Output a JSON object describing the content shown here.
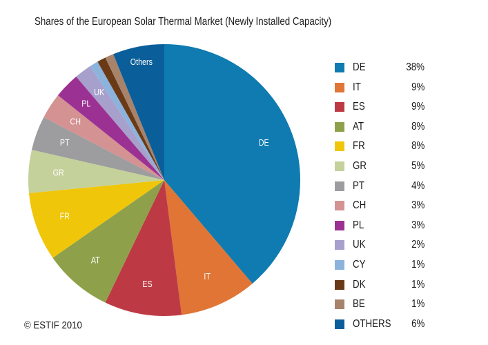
{
  "chart_data": {
    "type": "pie",
    "title": "Shares of the European Solar Thermal Market (Newly Installed Capacity)",
    "start": "12 o'clock, clockwise",
    "legend_position": "right",
    "slices": [
      {
        "key": "DE",
        "slice_label": "DE",
        "value": 38,
        "value_label": "38%",
        "color": "#0f7bb0"
      },
      {
        "key": "IT",
        "slice_label": "IT",
        "value": 9,
        "value_label": "9%",
        "color": "#e07535"
      },
      {
        "key": "ES",
        "slice_label": "ES",
        "value": 9,
        "value_label": "9%",
        "color": "#bd3a45"
      },
      {
        "key": "AT",
        "slice_label": "AT",
        "value": 8,
        "value_label": "8%",
        "color": "#8ea14a"
      },
      {
        "key": "FR",
        "slice_label": "FR",
        "value": 8,
        "value_label": "8%",
        "color": "#f0c60a"
      },
      {
        "key": "GR",
        "slice_label": "GR",
        "value": 5,
        "value_label": "5%",
        "color": "#c4d19b"
      },
      {
        "key": "PT",
        "slice_label": "PT",
        "value": 4,
        "value_label": "4%",
        "color": "#9d9d9f"
      },
      {
        "key": "CH",
        "slice_label": "CH",
        "value": 3,
        "value_label": "3%",
        "color": "#d49292"
      },
      {
        "key": "PL",
        "slice_label": "PL",
        "value": 3,
        "value_label": "3%",
        "color": "#9b3293"
      },
      {
        "key": "UK",
        "slice_label": "UK",
        "value": 2,
        "value_label": "2%",
        "color": "#a7a0cc"
      },
      {
        "key": "CY",
        "slice_label": "",
        "value": 1,
        "value_label": "1%",
        "color": "#8cb3dc"
      },
      {
        "key": "DK",
        "slice_label": "",
        "value": 1,
        "value_label": "1%",
        "color": "#6a3a16"
      },
      {
        "key": "BE",
        "slice_label": "",
        "value": 1,
        "value_label": "1%",
        "color": "#a8836c"
      },
      {
        "key": "OTHERS",
        "slice_label": "Others",
        "value": 6,
        "value_label": "6%",
        "color": "#0a5f9a"
      }
    ]
  },
  "footer": {
    "copyright": "© ESTIF 2010"
  }
}
